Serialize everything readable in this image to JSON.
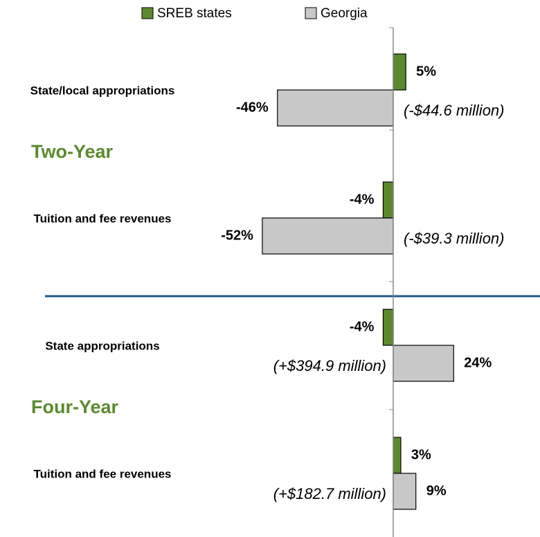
{
  "chart_data": {
    "type": "hbar",
    "categories": [
      "State/local appropriations",
      "Tuition and fee revenues",
      "State appropriations",
      "Tuition and fee revenues"
    ],
    "groups": [
      {
        "label": "Two-Year",
        "color": "#5b8a2d"
      },
      {
        "label": "Four-Year",
        "color": "#5b8a2d"
      }
    ],
    "series": [
      {
        "name": "SREB states",
        "color": "#5b8a2d",
        "values": [
          5,
          -4,
          -4,
          3
        ],
        "value_labels": [
          "5%",
          "-4%",
          "-4%",
          "3%"
        ]
      },
      {
        "name": "Georgia",
        "color": "#c8c8c8",
        "values": [
          -46,
          -52,
          24,
          9
        ],
        "value_labels": [
          "-46%",
          "-52%",
          "24%",
          "9%"
        ],
        "annotations": [
          "(-$44.6 million)",
          "(-$39.3 million)",
          "(+$394.9 million)",
          "(+$182.7 million)"
        ]
      }
    ],
    "xlim": [
      -55,
      55
    ],
    "legend": "top"
  }
}
